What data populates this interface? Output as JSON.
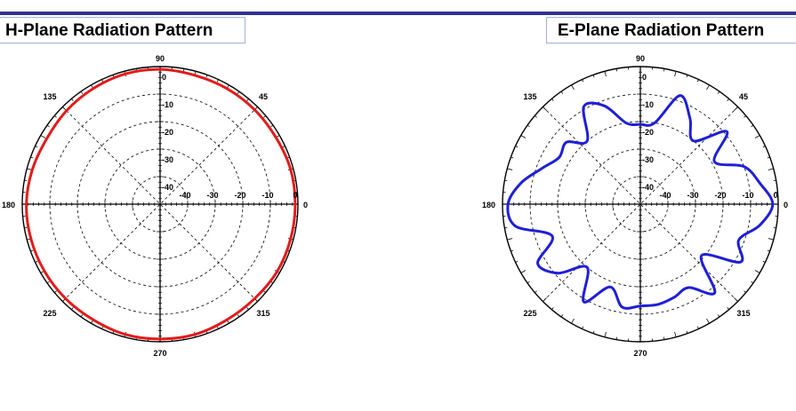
{
  "colors": {
    "header_rule": "#2e3192",
    "h_trace": "#e31b1b",
    "e_trace": "#1f1fd6",
    "title_border": "#9fb3d9"
  },
  "chart_data": [
    {
      "type": "line",
      "projection": "polar",
      "title": "H-Plane Radiation Pattern",
      "angle_labels": [
        "0",
        "45",
        "90",
        "135",
        "180",
        "225",
        "270",
        "315"
      ],
      "radial_labels": [
        "0",
        "-10",
        "-20",
        "-30",
        "-40"
      ],
      "radial_axis_labels": [
        "-40",
        "-30",
        "-20",
        "-10",
        "0"
      ],
      "rlim": [
        -50,
        0
      ],
      "grid": true,
      "series": [
        {
          "color": "#e31b1b",
          "theta": [
            0,
            15,
            30,
            45,
            60,
            75,
            90,
            105,
            120,
            135,
            150,
            165,
            180,
            195,
            210,
            225,
            240,
            255,
            270,
            285,
            300,
            315,
            330,
            345
          ],
          "r": [
            -1,
            -1,
            -1.5,
            -1.5,
            -1.5,
            -1.5,
            -1,
            -1,
            -1.5,
            -2,
            -2.5,
            -2,
            -1.5,
            -1.5,
            -1.5,
            -1.5,
            -1.5,
            -1,
            -1,
            -1,
            -1.5,
            -1.5,
            -1,
            -1
          ]
        }
      ]
    },
    {
      "type": "line",
      "projection": "polar",
      "title": "E-Plane Radiation Pattern",
      "angle_labels": [
        "0",
        "45",
        "90",
        "135",
        "180",
        "225",
        "270",
        "315"
      ],
      "radial_labels": [
        "0",
        "-10",
        "-20",
        "-30",
        "-40"
      ],
      "radial_axis_labels": [
        "-40",
        "-30",
        "-20",
        "-10",
        "0"
      ],
      "rlim": [
        -50,
        0
      ],
      "grid": true,
      "series": [
        {
          "color": "#1f1fd6",
          "theta": [
            0,
            10,
            20,
            30,
            40,
            50,
            60,
            70,
            80,
            90,
            100,
            110,
            120,
            130,
            140,
            150,
            160,
            170,
            180,
            190,
            200,
            210,
            220,
            230,
            240,
            250,
            260,
            270,
            280,
            290,
            300,
            310,
            320,
            330,
            340,
            350
          ],
          "r": [
            -2,
            -6,
            -10,
            -19,
            -9,
            -20,
            -14,
            -8,
            -20,
            -21,
            -20,
            -12,
            -9,
            -20,
            -15,
            -16,
            -12,
            -6,
            -2,
            -4,
            -16,
            -7,
            -11,
            -20,
            -9,
            -18,
            -12,
            -13,
            -13,
            -14,
            -15,
            -8,
            -21,
            -8,
            -12,
            -6
          ]
        }
      ]
    }
  ]
}
